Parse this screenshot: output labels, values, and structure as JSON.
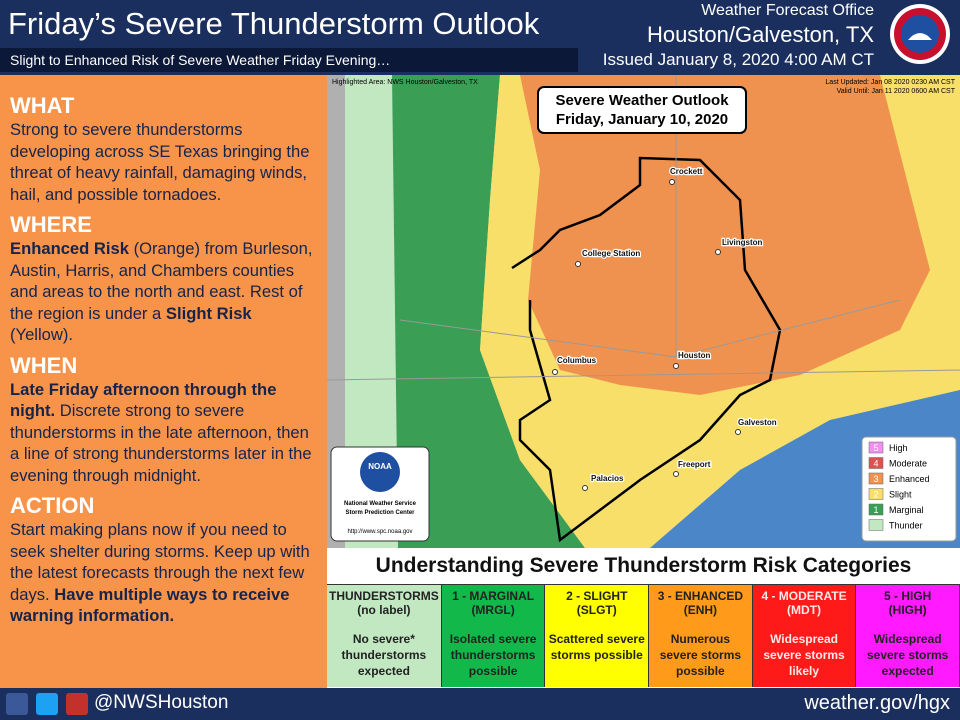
{
  "header": {
    "title": "Friday’s Severe Thunderstorm Outlook",
    "subtitle": "Slight to Enhanced Risk of Severe Weather Friday Evening…",
    "office": [
      "Weather Forecast Office",
      "Houston/Galveston, TX",
      "Issued January 8, 2020 4:00 AM CT"
    ]
  },
  "sections": [
    {
      "heading": "WHAT",
      "runs": [
        {
          "text": "Strong to severe thunderstorms developing across SE Texas bringing the threat of heavy rainfall, damaging winds, hail, and possible tornadoes.",
          "bold": false
        }
      ]
    },
    {
      "heading": "WHERE",
      "runs": [
        {
          "text": "Enhanced Risk",
          "bold": true
        },
        {
          "text": " (Orange) from Burleson, Austin, Harris, and Chambers counties and areas to the north and east.  Rest of the region is under a ",
          "bold": false
        },
        {
          "text": "Slight Risk",
          "bold": true
        },
        {
          "text": " (Yellow).",
          "bold": false
        }
      ]
    },
    {
      "heading": "WHEN",
      "runs": [
        {
          "text": "Late Friday afternoon through the night.",
          "bold": true
        },
        {
          "text": " Discrete strong to severe thunderstorms in the late afternoon, then a line of strong thunderstorms later in the evening through midnight.",
          "bold": false
        }
      ]
    },
    {
      "heading": "ACTION",
      "runs": [
        {
          "text": "Start making plans now if you need to seek shelter during storms. Keep up with the latest forecasts through the next few days. ",
          "bold": false
        },
        {
          "text": "Have multiple ways to receive warning information.",
          "bold": true
        }
      ]
    }
  ],
  "map": {
    "highlighted": "Highlighted Area: NWS Houston/Galveston, TX",
    "updated": "Last Updated: Jan 08 2020 0230 AM CST",
    "valid": "Valid Until: Jan 11 2020 0600 AM CST",
    "outlook": [
      "Severe Weather Outlook",
      "Friday, January 10, 2020"
    ],
    "cities": [
      "Crockett",
      "College Station",
      "Livingston",
      "Columbus",
      "Houston",
      "Galveston",
      "Freeport",
      "Palacios"
    ],
    "logo": {
      "name": "NOAA",
      "lines": [
        "National Weather Service",
        "Storm Prediction Center"
      ],
      "url": "http://www.spc.noaa.gov"
    },
    "legend": [
      {
        "number": 5,
        "label": "High",
        "color": "#f08ff0"
      },
      {
        "number": 4,
        "label": "Moderate",
        "color": "#e05050"
      },
      {
        "number": 3,
        "label": "Enhanced",
        "color": "#f0924f"
      },
      {
        "number": 2,
        "label": "Slight",
        "color": "#f7df6a"
      },
      {
        "number": 1,
        "label": "Marginal",
        "color": "#3b9e55"
      },
      {
        "label": "Thunder",
        "color": "#c1e8c1"
      }
    ]
  },
  "categories": {
    "title": "Understanding Severe Thunderstorm Risk Categories",
    "items": [
      {
        "name": "THUNDERSTORMS",
        "abbr": "(no label)",
        "description": "No severe* thunderstorms expected",
        "color": "#c1e8c1"
      },
      {
        "name": "1 - MARGINAL",
        "abbr": "(MRGL)",
        "description": "Isolated severe thunderstorms possible",
        "color": "#12b84a"
      },
      {
        "name": "2 - SLIGHT",
        "abbr": "(SLGT)",
        "description": "Scattered severe storms possible",
        "color": "#ffff00"
      },
      {
        "name": "3 - ENHANCED",
        "abbr": "(ENH)",
        "description": "Numerous severe storms possible",
        "color": "#ff9a1a"
      },
      {
        "name": "4 - MODERATE",
        "abbr": "(MDT)",
        "description": "Widespread severe storms likely",
        "color": "#ff1a1a"
      },
      {
        "name": "5 - HIGH",
        "abbr": "(HIGH)",
        "description": "Widespread severe storms expected",
        "color": "#ff1aff"
      }
    ]
  },
  "footer": {
    "handle": "@NWSHouston",
    "url": "weather.gov/hgx"
  }
}
